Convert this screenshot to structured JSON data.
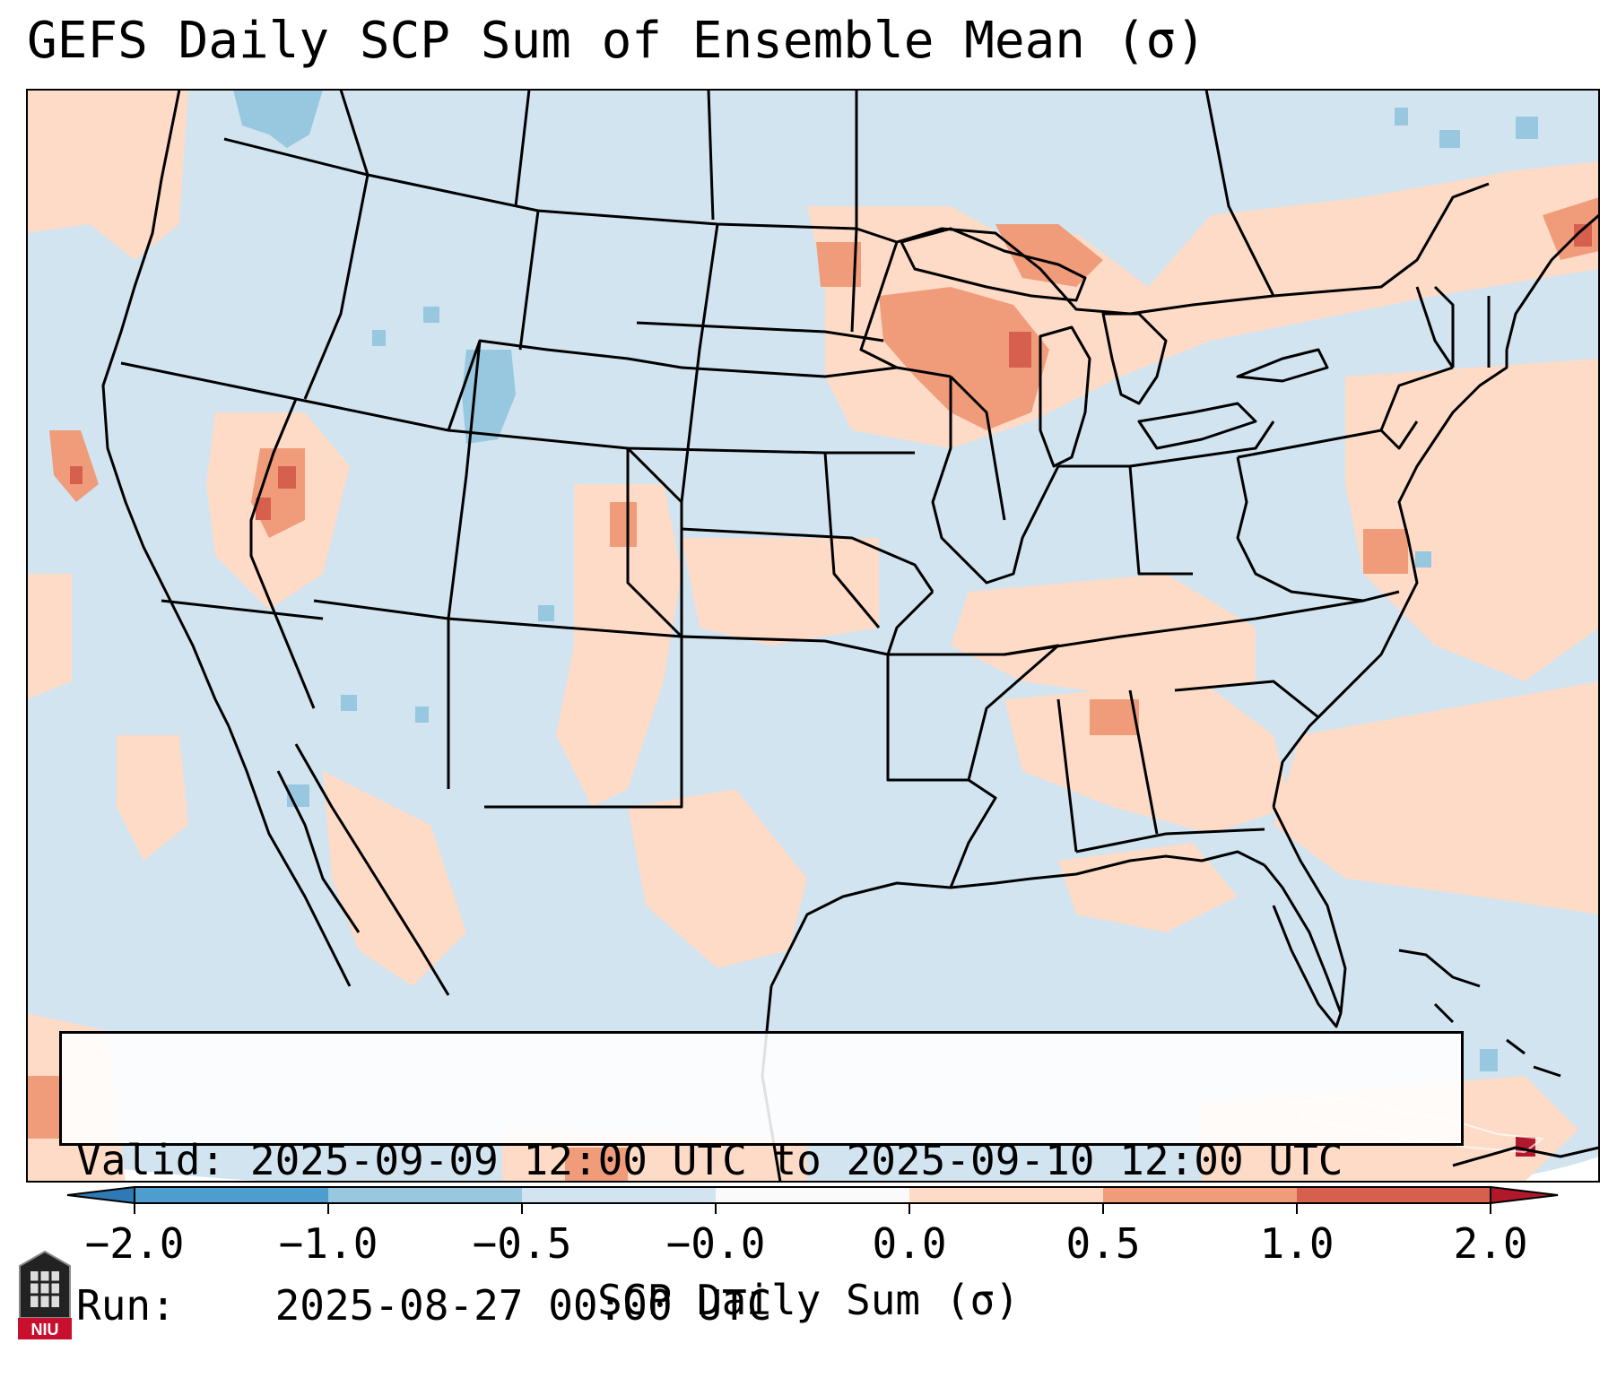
{
  "title": "GEFS Daily SCP Sum of Ensemble Mean (σ)",
  "info": {
    "valid_label": "Valid:",
    "valid_value": "2025-09-09 12:00 UTC to 2025-09-10 12:00 UTC",
    "run_label": "Run:",
    "run_value": "2025-08-27 00:00 UTC"
  },
  "colorbar": {
    "label": "SCP Daily Sum (σ)",
    "tick_labels": [
      "−2.0",
      "−1.0",
      "−0.5",
      "−0.0",
      "0.0",
      "0.5",
      "1.0",
      "2.0"
    ],
    "colors": [
      "#2f79b5",
      "#4d9dce",
      "#98c7e0",
      "#d1e4f0",
      "#fafafa",
      "#fddbc7",
      "#f09c7b",
      "#d6604d",
      "#b2182b"
    ]
  },
  "chart_data": {
    "type": "heatmap",
    "title": "GEFS Daily SCP Sum of Ensemble Mean (σ)",
    "colorbar_label": "SCP Daily Sum (σ)",
    "levels": [
      -2.0,
      -1.0,
      -0.5,
      -0.0,
      0.0,
      0.5,
      1.0,
      2.0
    ],
    "extend": "both",
    "region": "Contiguous United States, southern Canada, northern Mexico, Gulf of Mexico, western Atlantic",
    "anomalies": [
      {
        "area": "Upper Midwest / Wisconsin / Michigan",
        "range": [
          0.5,
          1.0
        ],
        "peak": 1.0
      },
      {
        "area": "Central Nevada",
        "range": [
          0.5,
          1.0
        ],
        "peak": 1.0
      },
      {
        "area": "Northern California coast",
        "range": [
          0.5,
          1.0
        ],
        "peak": 0.8
      },
      {
        "area": "Eastern Colorado / New Mexico",
        "range": [
          0.0,
          0.5
        ],
        "peak": 0.5
      },
      {
        "area": "Southeast US (Alabama, Georgia)",
        "range": [
          0.0,
          0.5
        ],
        "peak": 0.5
      },
      {
        "area": "Southern Quebec / New Brunswick",
        "range": [
          0.5,
          2.0
        ],
        "peak": 1.2
      },
      {
        "area": "Eastern Wyoming",
        "range": [
          -1.0,
          -0.5
        ],
        "peak": -0.8
      },
      {
        "area": "Southern British Columbia",
        "range": [
          -1.0,
          -0.5
        ],
        "peak": -0.7
      },
      {
        "area": "Hispaniola",
        "range": [
          1.0,
          2.0
        ],
        "peak": 1.5
      }
    ]
  },
  "logo": {
    "text": "NIU"
  }
}
